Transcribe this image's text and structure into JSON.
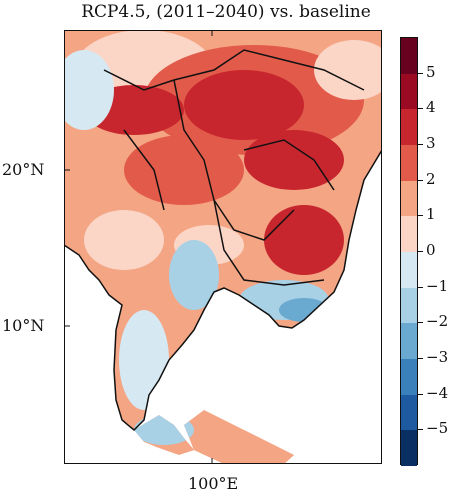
{
  "title": "RCP4.5, (2011–2040) vs. baseline",
  "lat_labels": [
    {
      "text": "20°N",
      "lat": 20
    },
    {
      "text": "10°N",
      "lat": 10
    }
  ],
  "lon_labels": [
    {
      "text": "100°E",
      "lon": 100
    }
  ],
  "colorbar": {
    "labels": [
      "5",
      "4",
      "3",
      "2",
      "1",
      "0",
      "−1",
      "−2",
      "−3",
      "−4",
      "−5"
    ],
    "colors": [
      "#68001f",
      "#9a0a23",
      "#c8262e",
      "#e25a4a",
      "#f4a584",
      "#fbd6c7",
      "#d6e9f2",
      "#a8d1e6",
      "#6aa9d0",
      "#3a80bb",
      "#1d5aa0",
      "#0a2f63"
    ]
  }
}
